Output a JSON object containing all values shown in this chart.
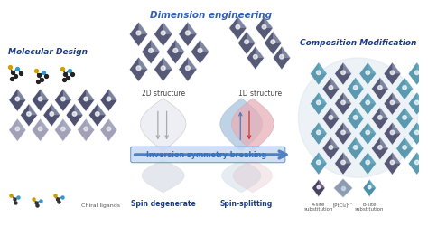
{
  "bg_color": "#ffffff",
  "dim_eng_text": "Dimension engineering",
  "dim_eng_color": "#3060b0",
  "mol_design_text": "Molecular Design",
  "mol_design_color": "#1a3a8a",
  "comp_mod_text": "Composition Modification",
  "comp_mod_color": "#1a3a8a",
  "struct_2d_text": "2D structure",
  "struct_1d_text": "1D structure",
  "struct_color": "#444444",
  "inv_sym_text": "Inversion symmetry breaking",
  "inv_sym_color": "#3070c0",
  "spin_deg_text": "Spin degenerate",
  "spin_split_text": "Spin-splitting",
  "spin_text_color": "#1a3a8a",
  "chiral_text": "Chiral ligands",
  "chiral_color": "#555555",
  "xsite_text": "X-site\nsubstitution",
  "ptcl_text": "[PtCl₄]²⁻",
  "bsite_text": "B-site\nsubstitution",
  "legend_color": "#555555",
  "oct_dark": "#454868",
  "oct_mid": "#6070a0",
  "oct_light": "#b0bcd0",
  "oct_teal": "#4a90a8",
  "oct_teal2": "#7ab8cc",
  "arrow_fill": "#c8daf0",
  "arrow_edge": "#5080c0",
  "red_line": "#cc3333",
  "blue_line_color": "#5577bb",
  "gray_line": "#888888",
  "spin_white": "#eceef4",
  "spin_blue": "#b0c8e0",
  "spin_pink": "#e8b0b8",
  "spin_shadow": "#d0d4e0"
}
